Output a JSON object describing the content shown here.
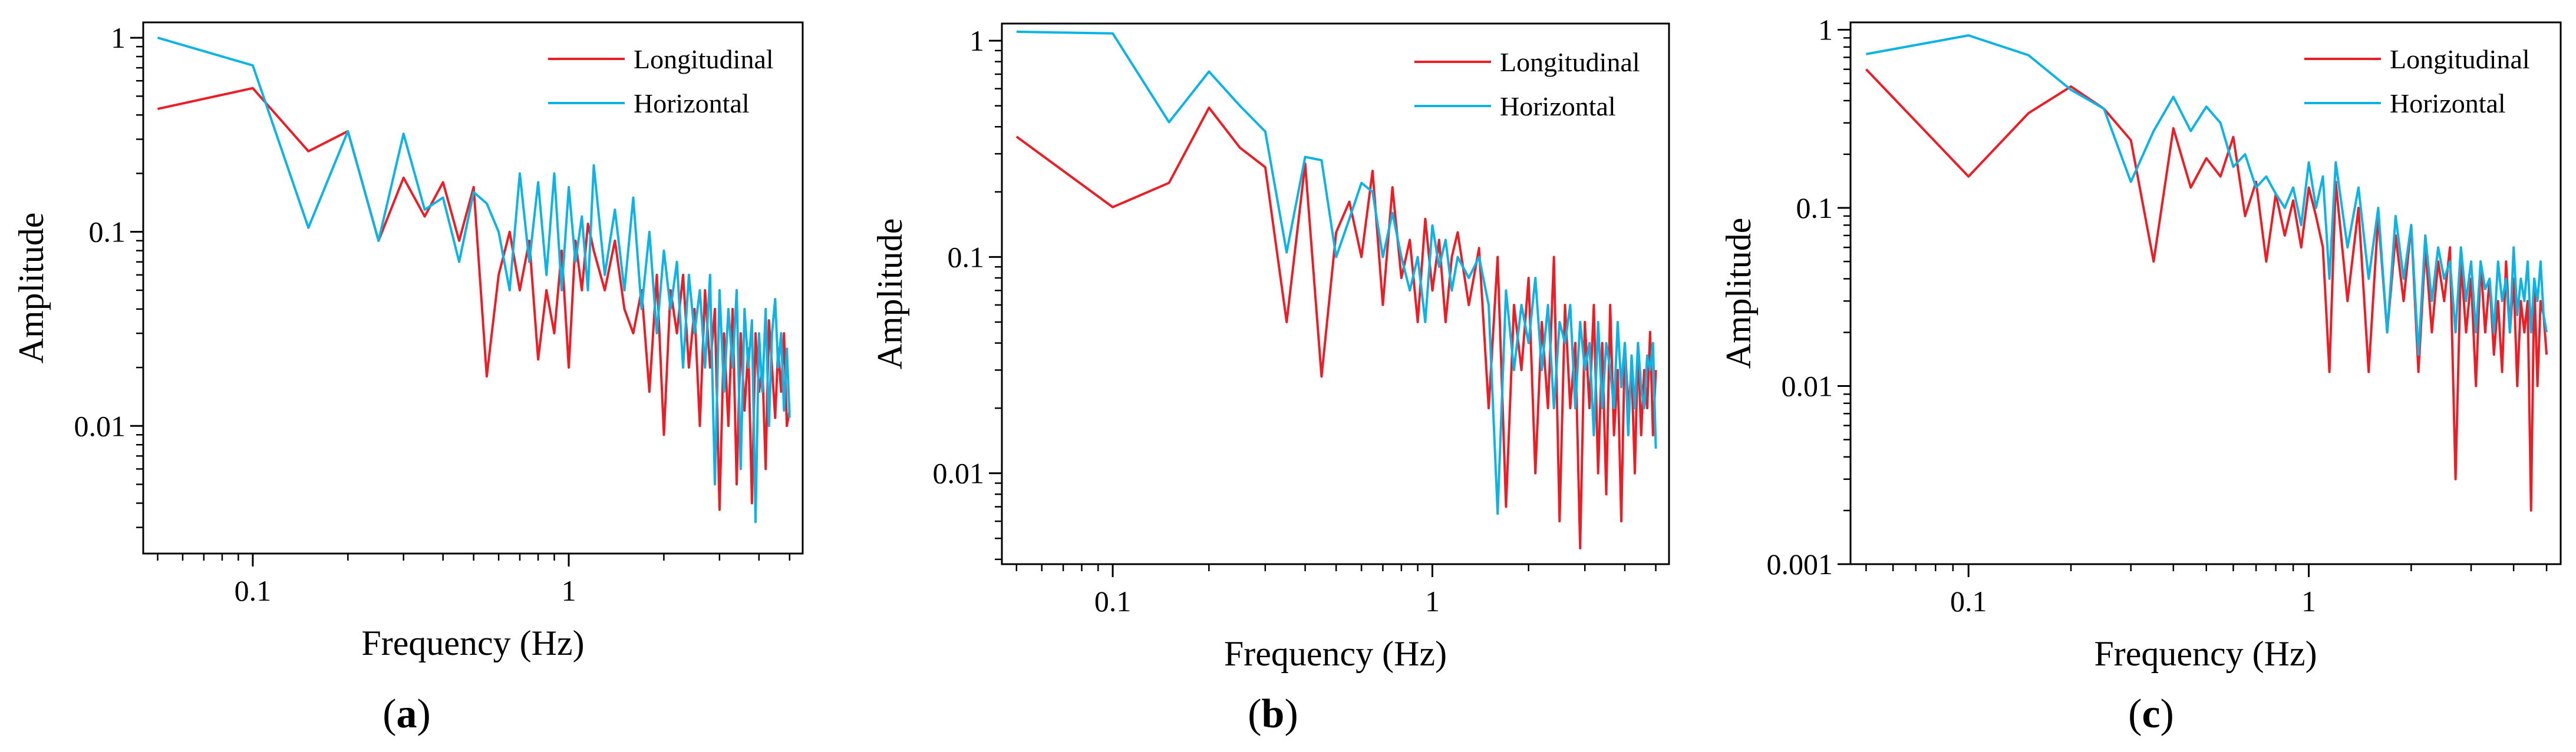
{
  "figure": {
    "caption_labels": [
      "(a)",
      "(b)",
      "(c)"
    ]
  },
  "colors": {
    "longitudinal": "#ee1c25",
    "horizontal": "#0cb4e6",
    "axis": "#000000"
  },
  "chart_data": [
    {
      "type": "line",
      "panel": "(a)",
      "xlabel": "Frequency (Hz)",
      "ylabel": "Amplitude",
      "xscale": "log",
      "yscale": "log",
      "xlim": [
        0.045,
        5.5
      ],
      "ylim": [
        0.0022,
        1.2
      ],
      "xticks": [
        {
          "v": 0.1,
          "label": "0.1"
        },
        {
          "v": 1,
          "label": "1"
        }
      ],
      "yticks": [
        {
          "v": 1,
          "label": "1"
        },
        {
          "v": 0.1,
          "label": "0.1"
        },
        {
          "v": 0.01,
          "label": "0.01"
        }
      ],
      "legend_position": "top-right",
      "series": [
        {
          "name": "Longitudinal",
          "color_key": "longitudinal",
          "x": [
            0.05,
            0.1,
            0.15,
            0.2,
            0.25,
            0.3,
            0.35,
            0.4,
            0.45,
            0.5,
            0.55,
            0.6,
            0.65,
            0.7,
            0.75,
            0.8,
            0.85,
            0.9,
            0.95,
            1.0,
            1.05,
            1.1,
            1.15,
            1.2,
            1.3,
            1.4,
            1.5,
            1.6,
            1.7,
            1.8,
            1.9,
            2.0,
            2.1,
            2.2,
            2.3,
            2.4,
            2.5,
            2.6,
            2.7,
            2.8,
            2.9,
            3.0,
            3.1,
            3.2,
            3.3,
            3.4,
            3.5,
            3.6,
            3.7,
            3.8,
            3.9,
            4.0,
            4.1,
            4.2,
            4.3,
            4.4,
            4.5,
            4.6,
            4.7,
            4.8,
            4.9,
            5.0
          ],
          "y": [
            0.43,
            0.55,
            0.26,
            0.33,
            0.09,
            0.19,
            0.12,
            0.18,
            0.09,
            0.17,
            0.018,
            0.06,
            0.1,
            0.05,
            0.09,
            0.022,
            0.05,
            0.03,
            0.08,
            0.02,
            0.09,
            0.05,
            0.11,
            0.08,
            0.05,
            0.09,
            0.04,
            0.03,
            0.05,
            0.015,
            0.06,
            0.009,
            0.05,
            0.03,
            0.06,
            0.02,
            0.04,
            0.01,
            0.05,
            0.02,
            0.04,
            0.0037,
            0.03,
            0.01,
            0.04,
            0.005,
            0.03,
            0.012,
            0.025,
            0.004,
            0.03,
            0.015,
            0.02,
            0.006,
            0.035,
            0.02,
            0.011,
            0.025,
            0.015,
            0.03,
            0.01,
            0.012
          ]
        },
        {
          "name": "Horizontal",
          "color_key": "horizontal",
          "x": [
            0.05,
            0.1,
            0.15,
            0.2,
            0.25,
            0.3,
            0.35,
            0.4,
            0.45,
            0.5,
            0.55,
            0.6,
            0.65,
            0.7,
            0.75,
            0.8,
            0.85,
            0.9,
            0.95,
            1.0,
            1.05,
            1.1,
            1.15,
            1.2,
            1.3,
            1.4,
            1.5,
            1.6,
            1.7,
            1.8,
            1.9,
            2.0,
            2.1,
            2.2,
            2.3,
            2.4,
            2.5,
            2.6,
            2.7,
            2.8,
            2.9,
            3.0,
            3.1,
            3.2,
            3.3,
            3.4,
            3.5,
            3.6,
            3.7,
            3.8,
            3.9,
            4.0,
            4.1,
            4.2,
            4.3,
            4.4,
            4.5,
            4.6,
            4.7,
            4.8,
            4.9,
            5.0
          ],
          "y": [
            1.0,
            0.72,
            0.105,
            0.33,
            0.09,
            0.32,
            0.13,
            0.15,
            0.07,
            0.16,
            0.14,
            0.1,
            0.05,
            0.2,
            0.07,
            0.18,
            0.06,
            0.2,
            0.05,
            0.17,
            0.07,
            0.12,
            0.05,
            0.22,
            0.06,
            0.13,
            0.05,
            0.15,
            0.04,
            0.1,
            0.03,
            0.08,
            0.04,
            0.07,
            0.02,
            0.06,
            0.03,
            0.05,
            0.02,
            0.06,
            0.005,
            0.05,
            0.015,
            0.04,
            0.02,
            0.05,
            0.006,
            0.04,
            0.02,
            0.035,
            0.0032,
            0.03,
            0.015,
            0.04,
            0.01,
            0.03,
            0.045,
            0.02,
            0.03,
            0.012,
            0.025,
            0.011
          ]
        }
      ]
    },
    {
      "type": "line",
      "panel": "(b)",
      "xlabel": "Frequency (Hz)",
      "ylabel": "Amplitude",
      "xscale": "log",
      "yscale": "log",
      "xlim": [
        0.045,
        5.5
      ],
      "ylim": [
        0.0038,
        1.2
      ],
      "xticks": [
        {
          "v": 0.1,
          "label": "0.1"
        },
        {
          "v": 1,
          "label": "1"
        }
      ],
      "yticks": [
        {
          "v": 1,
          "label": "1"
        },
        {
          "v": 0.1,
          "label": "0.1"
        },
        {
          "v": 0.01,
          "label": "0.01"
        }
      ],
      "legend_position": "top-right",
      "series": [
        {
          "name": "Longitudinal",
          "color_key": "longitudinal",
          "x": [
            0.05,
            0.1,
            0.15,
            0.2,
            0.25,
            0.3,
            0.35,
            0.4,
            0.45,
            0.5,
            0.55,
            0.6,
            0.65,
            0.7,
            0.75,
            0.8,
            0.85,
            0.9,
            0.95,
            1.0,
            1.05,
            1.1,
            1.15,
            1.2,
            1.3,
            1.4,
            1.5,
            1.6,
            1.7,
            1.8,
            1.9,
            2.0,
            2.1,
            2.2,
            2.3,
            2.4,
            2.5,
            2.6,
            2.7,
            2.8,
            2.9,
            3.0,
            3.1,
            3.2,
            3.3,
            3.4,
            3.5,
            3.6,
            3.7,
            3.8,
            3.9,
            4.0,
            4.1,
            4.2,
            4.3,
            4.4,
            4.5,
            4.6,
            4.7,
            4.8,
            4.9,
            5.0
          ],
          "y": [
            0.36,
            0.17,
            0.22,
            0.49,
            0.32,
            0.26,
            0.05,
            0.27,
            0.028,
            0.13,
            0.18,
            0.1,
            0.25,
            0.06,
            0.21,
            0.08,
            0.12,
            0.05,
            0.15,
            0.07,
            0.12,
            0.05,
            0.1,
            0.13,
            0.06,
            0.11,
            0.02,
            0.1,
            0.007,
            0.06,
            0.03,
            0.08,
            0.01,
            0.05,
            0.02,
            0.1,
            0.006,
            0.06,
            0.02,
            0.04,
            0.0045,
            0.05,
            0.02,
            0.06,
            0.01,
            0.04,
            0.008,
            0.06,
            0.015,
            0.03,
            0.006,
            0.04,
            0.02,
            0.03,
            0.01,
            0.04,
            0.015,
            0.03,
            0.02,
            0.045,
            0.015,
            0.03
          ]
        },
        {
          "name": "Horizontal",
          "color_key": "horizontal",
          "x": [
            0.05,
            0.1,
            0.15,
            0.2,
            0.25,
            0.3,
            0.35,
            0.4,
            0.45,
            0.5,
            0.55,
            0.6,
            0.65,
            0.7,
            0.75,
            0.8,
            0.85,
            0.9,
            0.95,
            1.0,
            1.05,
            1.1,
            1.15,
            1.2,
            1.3,
            1.4,
            1.5,
            1.6,
            1.7,
            1.8,
            1.9,
            2.0,
            2.1,
            2.2,
            2.3,
            2.4,
            2.5,
            2.6,
            2.7,
            2.8,
            2.9,
            3.0,
            3.1,
            3.2,
            3.3,
            3.4,
            3.5,
            3.6,
            3.7,
            3.8,
            3.9,
            4.0,
            4.1,
            4.2,
            4.3,
            4.4,
            4.5,
            4.6,
            4.7,
            4.8,
            4.9,
            5.0
          ],
          "y": [
            1.1,
            1.08,
            0.42,
            0.72,
            0.5,
            0.38,
            0.105,
            0.29,
            0.28,
            0.1,
            0.15,
            0.22,
            0.2,
            0.1,
            0.16,
            0.1,
            0.07,
            0.1,
            0.05,
            0.14,
            0.09,
            0.12,
            0.07,
            0.1,
            0.08,
            0.1,
            0.06,
            0.0065,
            0.07,
            0.03,
            0.06,
            0.04,
            0.08,
            0.03,
            0.06,
            0.02,
            0.05,
            0.04,
            0.06,
            0.02,
            0.05,
            0.03,
            0.04,
            0.015,
            0.05,
            0.02,
            0.04,
            0.03,
            0.02,
            0.05,
            0.025,
            0.04,
            0.015,
            0.035,
            0.02,
            0.04,
            0.025,
            0.02,
            0.035,
            0.03,
            0.04,
            0.013
          ]
        }
      ]
    },
    {
      "type": "line",
      "panel": "(c)",
      "xlabel": "Frequency (Hz)",
      "ylabel": "Amplitude",
      "xscale": "log",
      "yscale": "log",
      "xlim": [
        0.045,
        5.5
      ],
      "ylim": [
        0.001,
        1.1
      ],
      "xticks": [
        {
          "v": 0.1,
          "label": "0.1"
        },
        {
          "v": 1,
          "label": "1"
        }
      ],
      "yticks": [
        {
          "v": 1,
          "label": "1"
        },
        {
          "v": 0.1,
          "label": "0.1"
        },
        {
          "v": 0.01,
          "label": "0.01"
        },
        {
          "v": 0.001,
          "label": "0.001"
        }
      ],
      "legend_position": "top-right",
      "series": [
        {
          "name": "Longitudinal",
          "color_key": "longitudinal",
          "x": [
            0.05,
            0.1,
            0.15,
            0.2,
            0.25,
            0.3,
            0.35,
            0.4,
            0.45,
            0.5,
            0.55,
            0.6,
            0.65,
            0.7,
            0.75,
            0.8,
            0.85,
            0.9,
            0.95,
            1.0,
            1.05,
            1.1,
            1.15,
            1.2,
            1.3,
            1.4,
            1.5,
            1.6,
            1.7,
            1.8,
            1.9,
            2.0,
            2.1,
            2.2,
            2.3,
            2.4,
            2.5,
            2.6,
            2.7,
            2.8,
            2.9,
            3.0,
            3.1,
            3.2,
            3.3,
            3.4,
            3.5,
            3.6,
            3.7,
            3.8,
            3.9,
            4.0,
            4.1,
            4.2,
            4.3,
            4.4,
            4.5,
            4.6,
            4.7,
            4.8,
            4.9,
            5.0
          ],
          "y": [
            0.6,
            0.15,
            0.34,
            0.48,
            0.36,
            0.24,
            0.05,
            0.28,
            0.13,
            0.19,
            0.15,
            0.25,
            0.09,
            0.14,
            0.05,
            0.12,
            0.07,
            0.11,
            0.06,
            0.13,
            0.09,
            0.06,
            0.012,
            0.14,
            0.03,
            0.1,
            0.012,
            0.09,
            0.02,
            0.07,
            0.03,
            0.08,
            0.012,
            0.06,
            0.02,
            0.05,
            0.03,
            0.06,
            0.003,
            0.05,
            0.02,
            0.04,
            0.01,
            0.05,
            0.02,
            0.04,
            0.015,
            0.03,
            0.012,
            0.05,
            0.02,
            0.04,
            0.01,
            0.03,
            0.02,
            0.03,
            0.002,
            0.04,
            0.01,
            0.03,
            0.025,
            0.015
          ]
        },
        {
          "name": "Horizontal",
          "color_key": "horizontal",
          "x": [
            0.05,
            0.1,
            0.15,
            0.2,
            0.25,
            0.3,
            0.35,
            0.4,
            0.45,
            0.5,
            0.55,
            0.6,
            0.65,
            0.7,
            0.75,
            0.8,
            0.85,
            0.9,
            0.95,
            1.0,
            1.05,
            1.1,
            1.15,
            1.2,
            1.3,
            1.4,
            1.5,
            1.6,
            1.7,
            1.8,
            1.9,
            2.0,
            2.1,
            2.2,
            2.3,
            2.4,
            2.5,
            2.6,
            2.7,
            2.8,
            2.9,
            3.0,
            3.1,
            3.2,
            3.3,
            3.4,
            3.5,
            3.6,
            3.7,
            3.8,
            3.9,
            4.0,
            4.1,
            4.2,
            4.3,
            4.4,
            4.5,
            4.6,
            4.7,
            4.8,
            4.9,
            5.0
          ],
          "y": [
            0.73,
            0.93,
            0.72,
            0.46,
            0.36,
            0.14,
            0.27,
            0.42,
            0.27,
            0.37,
            0.3,
            0.17,
            0.2,
            0.13,
            0.15,
            0.12,
            0.1,
            0.13,
            0.08,
            0.18,
            0.1,
            0.15,
            0.04,
            0.18,
            0.06,
            0.13,
            0.04,
            0.1,
            0.02,
            0.09,
            0.04,
            0.08,
            0.015,
            0.07,
            0.03,
            0.06,
            0.04,
            0.05,
            0.02,
            0.06,
            0.03,
            0.05,
            0.02,
            0.05,
            0.035,
            0.04,
            0.02,
            0.05,
            0.03,
            0.04,
            0.02,
            0.06,
            0.025,
            0.04,
            0.03,
            0.05,
            0.02,
            0.04,
            0.03,
            0.05,
            0.025,
            0.02
          ]
        }
      ]
    }
  ]
}
